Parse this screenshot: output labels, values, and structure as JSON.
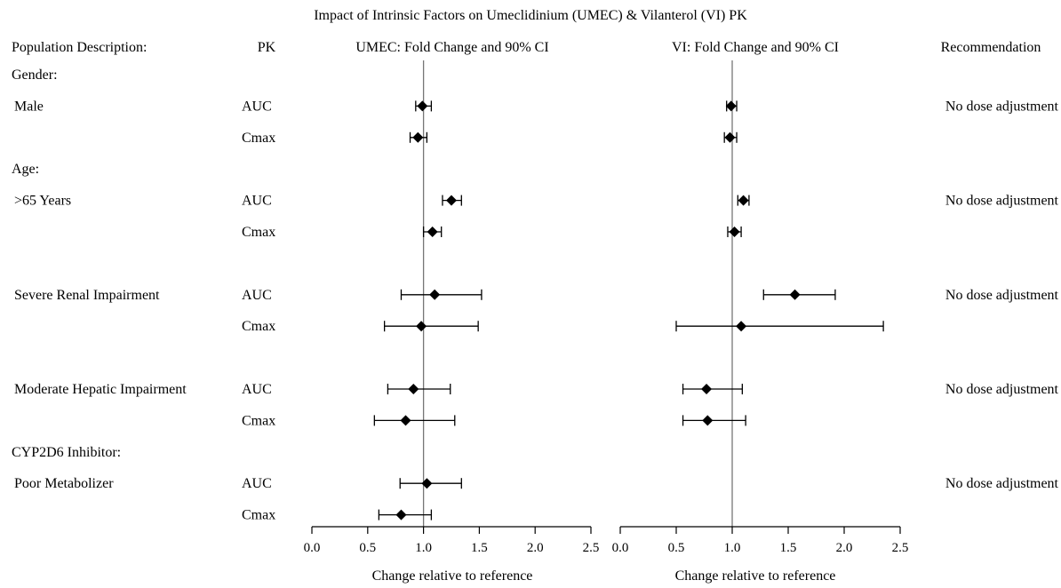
{
  "title": "Impact of Intrinsic Factors on Umeclidinium (UMEC) & Vilanterol (VI) PK",
  "headers": {
    "population": "Population Description:",
    "pk": "PK",
    "umec": "UMEC: Fold Change and 90% CI",
    "vi": "VI: Fold Change and 90% CI",
    "recommendation": "Recommendation"
  },
  "rows": [
    {
      "population": "Gender:",
      "pk": "",
      "recommendation": ""
    },
    {
      "population": "Male",
      "pk": "AUC",
      "recommendation": "No dose adjustment"
    },
    {
      "population": "",
      "pk": "Cmax",
      "recommendation": ""
    },
    {
      "population": "Age:",
      "pk": "",
      "recommendation": ""
    },
    {
      "population": ">65 Years",
      "pk": "AUC",
      "recommendation": "No dose adjustment"
    },
    {
      "population": "",
      "pk": "Cmax",
      "recommendation": ""
    },
    {
      "population": "",
      "pk": "",
      "recommendation": ""
    },
    {
      "population": "Severe Renal Impairment",
      "pk": "AUC",
      "recommendation": "No dose adjustment"
    },
    {
      "population": "",
      "pk": "Cmax",
      "recommendation": ""
    },
    {
      "population": "",
      "pk": "",
      "recommendation": ""
    },
    {
      "population": "Moderate Hepatic Impairment",
      "pk": "AUC",
      "recommendation": "No dose adjustment"
    },
    {
      "population": "",
      "pk": "Cmax",
      "recommendation": ""
    },
    {
      "population": "CYP2D6 Inhibitor:",
      "pk": "",
      "recommendation": ""
    },
    {
      "population": "Poor Metabolizer",
      "pk": "AUC",
      "recommendation": "No dose adjustment"
    },
    {
      "population": "",
      "pk": "Cmax",
      "recommendation": ""
    }
  ],
  "chart_data": [
    {
      "type": "scatter",
      "title": "UMEC: Fold Change and 90% CI",
      "xlabel": "Change relative to reference",
      "xlim": [
        0,
        2.5
      ],
      "xticks": [
        "0.0",
        "0.5",
        "1.0",
        "1.5",
        "2.0",
        "2.5"
      ],
      "tick_values": [
        0,
        0.5,
        1.0,
        1.5,
        2.0,
        2.5
      ],
      "reference_line": 1.0,
      "marker": "diamond",
      "points": [
        {
          "group": "Male",
          "pk": "AUC",
          "estimate": 0.99,
          "lower": 0.93,
          "upper": 1.07
        },
        {
          "group": "Male",
          "pk": "Cmax",
          "estimate": 0.95,
          "lower": 0.88,
          "upper": 1.03
        },
        {
          "group": ">65 Years",
          "pk": "AUC",
          "estimate": 1.25,
          "lower": 1.17,
          "upper": 1.34
        },
        {
          "group": ">65 Years",
          "pk": "Cmax",
          "estimate": 1.08,
          "lower": 1.0,
          "upper": 1.16
        },
        {
          "group": "Severe Renal Impairment",
          "pk": "AUC",
          "estimate": 1.1,
          "lower": 0.8,
          "upper": 1.52
        },
        {
          "group": "Severe Renal Impairment",
          "pk": "Cmax",
          "estimate": 0.98,
          "lower": 0.65,
          "upper": 1.49
        },
        {
          "group": "Moderate Hepatic Impairment",
          "pk": "AUC",
          "estimate": 0.91,
          "lower": 0.68,
          "upper": 1.24
        },
        {
          "group": "Moderate Hepatic Impairment",
          "pk": "Cmax",
          "estimate": 0.84,
          "lower": 0.56,
          "upper": 1.28
        },
        {
          "group": "Poor Metabolizer",
          "pk": "AUC",
          "estimate": 1.03,
          "lower": 0.79,
          "upper": 1.34
        },
        {
          "group": "Poor Metabolizer",
          "pk": "Cmax",
          "estimate": 0.8,
          "lower": 0.6,
          "upper": 1.07
        }
      ]
    },
    {
      "type": "scatter",
      "title": "VI: Fold Change and 90% CI",
      "xlabel": "Change relative to reference",
      "xlim": [
        0,
        2.5
      ],
      "xticks": [
        "0.0",
        "0.5",
        "1.0",
        "1.5",
        "2.0",
        "2.5"
      ],
      "tick_values": [
        0,
        0.5,
        1.0,
        1.5,
        2.0,
        2.5
      ],
      "reference_line": 1.0,
      "marker": "diamond",
      "points": [
        {
          "group": "Male",
          "pk": "AUC",
          "estimate": 0.99,
          "lower": 0.95,
          "upper": 1.04
        },
        {
          "group": "Male",
          "pk": "Cmax",
          "estimate": 0.98,
          "lower": 0.93,
          "upper": 1.04
        },
        {
          "group": ">65 Years",
          "pk": "AUC",
          "estimate": 1.1,
          "lower": 1.05,
          "upper": 1.15
        },
        {
          "group": ">65 Years",
          "pk": "Cmax",
          "estimate": 1.02,
          "lower": 0.96,
          "upper": 1.08
        },
        {
          "group": "Severe Renal Impairment",
          "pk": "AUC",
          "estimate": 1.56,
          "lower": 1.28,
          "upper": 1.92
        },
        {
          "group": "Severe Renal Impairment",
          "pk": "Cmax",
          "estimate": 1.08,
          "lower": 0.5,
          "upper": 2.35
        },
        {
          "group": "Moderate Hepatic Impairment",
          "pk": "AUC",
          "estimate": 0.77,
          "lower": 0.56,
          "upper": 1.09
        },
        {
          "group": "Moderate Hepatic Impairment",
          "pk": "Cmax",
          "estimate": 0.78,
          "lower": 0.56,
          "upper": 1.12
        }
      ]
    }
  ]
}
